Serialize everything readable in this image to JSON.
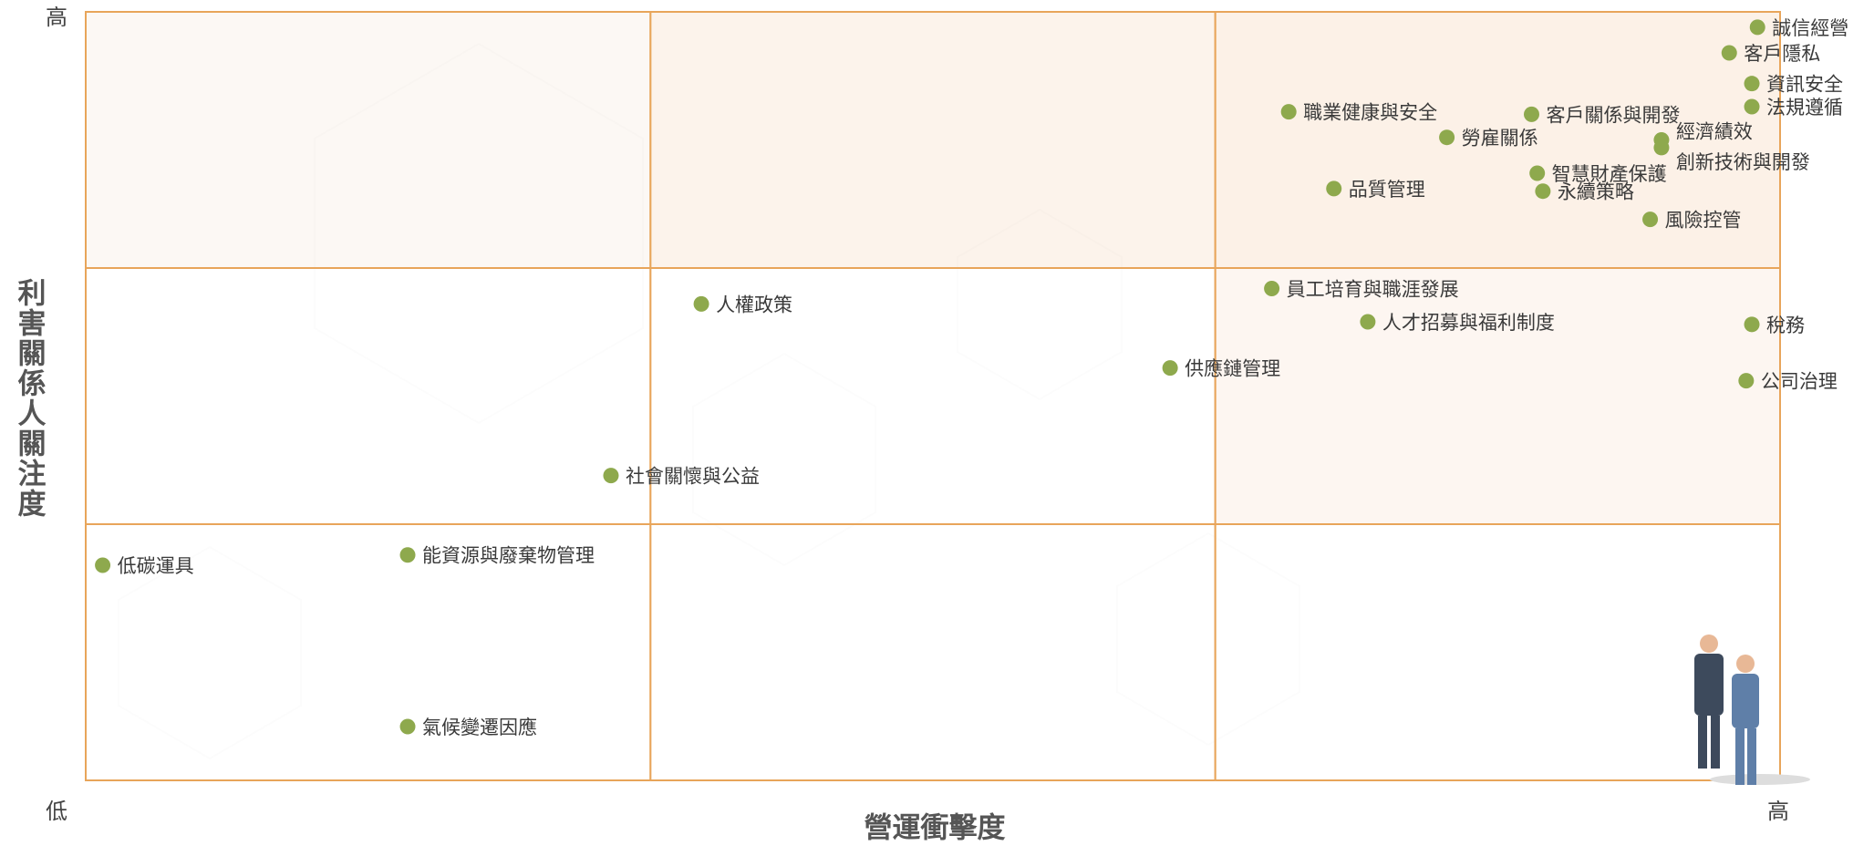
{
  "chart_data": {
    "type": "scatter",
    "x_label": "營運衝擊度",
    "y_label": "利害關係人關注度",
    "xlim": [
      0,
      3
    ],
    "ylim": [
      0,
      3
    ],
    "xticks": [
      {
        "value": 3,
        "label": "高"
      }
    ],
    "yticks": [
      {
        "value": 0,
        "label": "低"
      },
      {
        "value": 3,
        "label": "高"
      }
    ],
    "grid_divisions": 3,
    "color": "#8ea94d",
    "labels": [
      "誠信經營",
      "客戶隱私",
      "資訊安全",
      "法規遵循",
      "職業健康與安全",
      "客戶關係與開發",
      "勞雇關係",
      "經濟績效",
      "創新技術與開發",
      "智慧財產保護",
      "品質管理",
      "永續策略",
      "風險控管",
      "員工培育與職涯發展",
      "人權政策",
      "人才招募與福利制度",
      "稅務",
      "供應鏈管理",
      "公司治理",
      "社會關懷與公益",
      "低碳運具",
      "能資源與廢棄物管理",
      "氣候變遷因應"
    ],
    "x": [
      2.96,
      2.91,
      2.95,
      2.95,
      2.13,
      2.56,
      2.41,
      2.79,
      2.79,
      2.57,
      2.21,
      2.58,
      2.77,
      2.1,
      1.09,
      2.27,
      2.95,
      1.92,
      2.94,
      0.93,
      0.03,
      0.57,
      0.57
    ],
    "y": [
      2.94,
      2.84,
      2.72,
      2.63,
      2.61,
      2.6,
      2.51,
      2.5,
      2.47,
      2.37,
      2.31,
      2.3,
      2.19,
      1.92,
      1.86,
      1.79,
      1.78,
      1.61,
      1.56,
      1.19,
      0.84,
      0.88,
      0.21
    ]
  }
}
